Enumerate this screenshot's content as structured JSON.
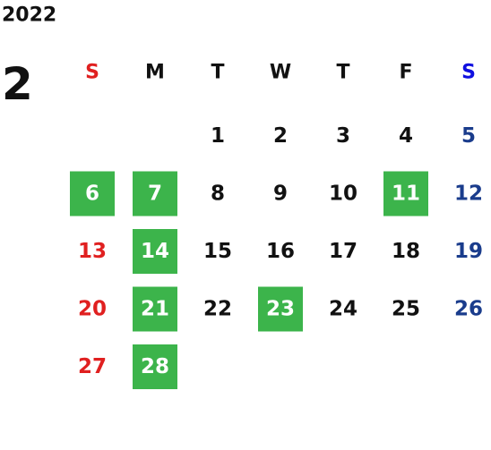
{
  "calendar": {
    "year": "2022",
    "month": "2",
    "weekdays": [
      "S",
      "M",
      "T",
      "W",
      "T",
      "F",
      "S"
    ],
    "weekday_colors": [
      "#e02020",
      "#111111",
      "#111111",
      "#111111",
      "#111111",
      "#111111",
      "#1010e0"
    ],
    "day_colors": [
      "#e02020",
      "#111111",
      "#111111",
      "#111111",
      "#111111",
      "#111111",
      "#1a3c8c"
    ],
    "highlight_color": "#3cb44b",
    "highlight_text_color": "#ffffff",
    "weeks": [
      [
        null,
        null,
        1,
        2,
        3,
        4,
        5
      ],
      [
        6,
        7,
        8,
        9,
        10,
        11,
        12
      ],
      [
        13,
        14,
        15,
        16,
        17,
        18,
        19
      ],
      [
        20,
        21,
        22,
        23,
        24,
        25,
        26
      ],
      [
        27,
        28,
        null,
        null,
        null,
        null,
        null
      ]
    ],
    "highlighted": [
      [
        false,
        false,
        false,
        false,
        false,
        false,
        false
      ],
      [
        true,
        true,
        false,
        false,
        false,
        true,
        false
      ],
      [
        false,
        true,
        false,
        false,
        false,
        false,
        false
      ],
      [
        false,
        true,
        false,
        true,
        false,
        false,
        false
      ],
      [
        false,
        true,
        false,
        false,
        false,
        false,
        false
      ]
    ]
  }
}
